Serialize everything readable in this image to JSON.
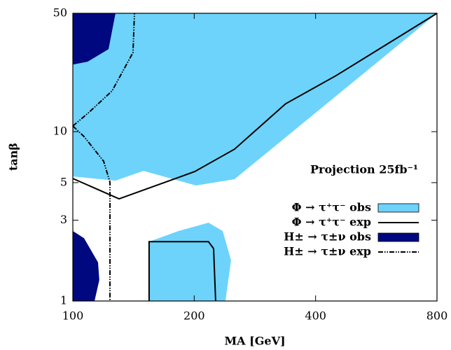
{
  "chart_data": {
    "type": "area",
    "xlabel": "MA [GeV]",
    "ylabel": "tanβ",
    "annotation": "Projection 25fb⁻¹",
    "xscale": "log",
    "yscale": "log",
    "xlim": [
      100,
      800
    ],
    "ylim": [
      1,
      50
    ],
    "xticks": [
      100,
      200,
      400,
      800
    ],
    "yticks": [
      1,
      3,
      5,
      10,
      50
    ],
    "legend": "lower right",
    "series": [
      {
        "name": "Φ → τ⁺τ⁻ obs",
        "kind": "area",
        "color": "#6dd3fb",
        "x": [
          100,
          127.6,
          149.7,
          202,
          251.8,
          800,
          100,
          null,
          154.6,
          154.6,
          182.9,
          217,
          235.3,
          246.8,
          239
        ],
        "values": [
          5.44,
          5.14,
          5.87,
          4.81,
          5.24,
          50,
          50,
          null,
          1,
          2.24,
          2.59,
          2.9,
          2.59,
          1.74,
          1
        ]
      },
      {
        "name": "Φ → τ⁺τ⁻ exp",
        "kind": "line",
        "color": "#000000",
        "linestyle": "solid",
        "x": [
          100,
          130.2,
          200.5,
          251.8,
          337,
          449,
          800,
          null,
          154.6,
          154.6,
          217,
          223.4,
          226
        ],
        "values": [
          5.29,
          4.01,
          5.81,
          7.88,
          14.6,
          21.4,
          50,
          null,
          1,
          2.24,
          2.24,
          2.04,
          1
        ]
      },
      {
        "name": "H± → τ±ν obs",
        "kind": "area",
        "color": "#00087f",
        "x": [
          100,
          127.6,
          122.6,
          108.8,
          100,
          null,
          100,
          106.6,
          115.5,
          116.3,
          113.2,
          100
        ],
        "values": [
          50,
          50,
          30.7,
          25.9,
          24.9,
          null,
          2.59,
          2.35,
          1.69,
          1.33,
          1,
          1
        ]
      },
      {
        "name": "H± → τ±ν exp",
        "kind": "line",
        "color": "#000000",
        "linestyle": "dashdotdot",
        "x": [
          100,
          108.8,
          125.1,
          141,
          142.2,
          null,
          100,
          106.6,
          119.2,
          123.6,
          123.6
        ],
        "values": [
          10.8,
          12.8,
          17.4,
          29.3,
          50,
          null,
          10.8,
          9.35,
          6.7,
          5.04,
          1
        ]
      }
    ]
  }
}
